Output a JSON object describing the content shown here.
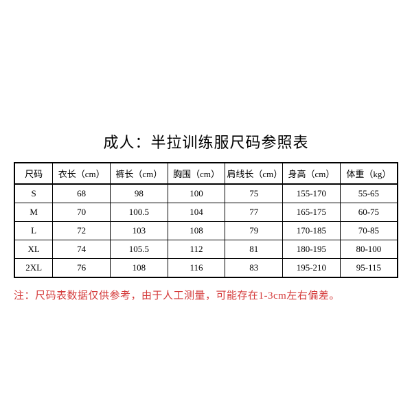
{
  "title": "成人：半拉训练服尺码参照表",
  "columns": [
    "尺码",
    "衣长（cm）",
    "裤长（cm）",
    "胸围（cm）",
    "肩线长（cm）",
    "身高（cm）",
    "体重（kg）"
  ],
  "rows": [
    [
      "S",
      "68",
      "98",
      "100",
      "75",
      "155-170",
      "55-65"
    ],
    [
      "M",
      "70",
      "100.5",
      "104",
      "77",
      "165-175",
      "60-75"
    ],
    [
      "L",
      "72",
      "103",
      "108",
      "79",
      "170-185",
      "70-85"
    ],
    [
      "XL",
      "74",
      "105.5",
      "112",
      "81",
      "180-195",
      "80-100"
    ],
    [
      "2XL",
      "76",
      "108",
      "116",
      "83",
      "195-210",
      "95-115"
    ]
  ],
  "note": "注：尺码表数据仅供参考，由于人工测量，可能存在1-3cm左右偏差。",
  "styling": {
    "background_color": "#ffffff",
    "border_color": "#000000",
    "text_color": "#000000",
    "note_color": "#d43a3a",
    "title_fontsize": 22,
    "cell_fontsize": 13,
    "note_fontsize": 15,
    "outer_border_width": 2,
    "inner_border_width": 1,
    "column_widths_pct": [
      10,
      15,
      15,
      15,
      15,
      15,
      15
    ]
  }
}
